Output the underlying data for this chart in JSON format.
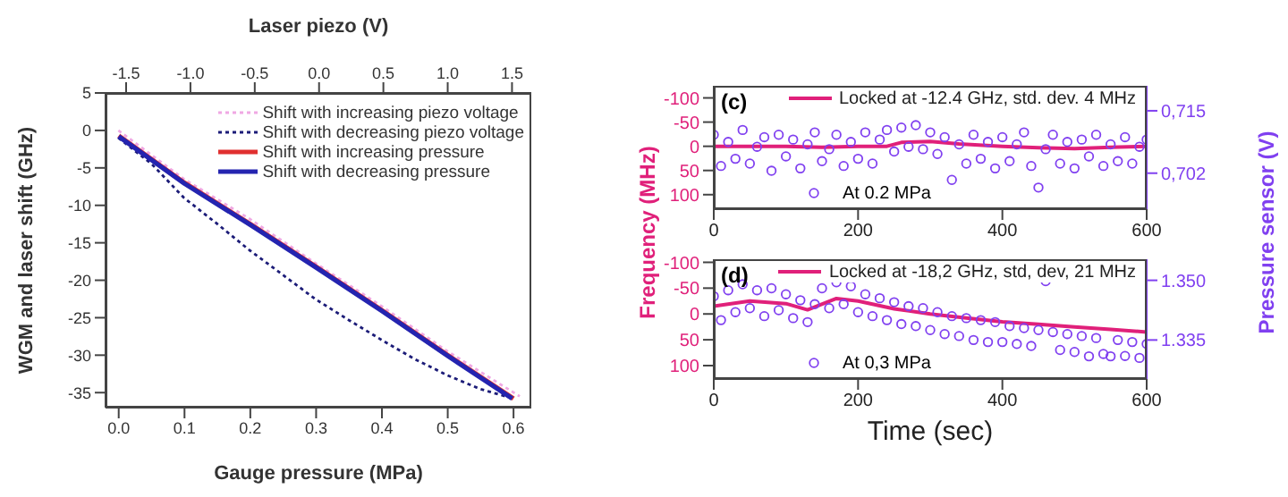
{
  "chart_data": [
    {
      "type": "line",
      "xlabel": "Gauge pressure (MPa)",
      "x2label": "Laser piezo (V)",
      "ylabel": "WGM and laser shift (GHz)",
      "xlim": [
        -0.02,
        0.627
      ],
      "xticks": [
        {
          "value": 0,
          "label": "0.0"
        },
        {
          "value": 0.1,
          "label": "0.1"
        },
        {
          "value": 0.2,
          "label": "0.2"
        },
        {
          "value": 0.3,
          "label": "0.3"
        },
        {
          "value": 0.4,
          "label": "0.4"
        },
        {
          "value": 0.5,
          "label": "0.5"
        },
        {
          "value": 0.6,
          "label": "0.6"
        }
      ],
      "x2lim": [
        -1.66,
        1.65
      ],
      "x2ticks": [
        {
          "value": -1.5,
          "label": "-1.5"
        },
        {
          "value": -1,
          "label": "-1.0"
        },
        {
          "value": -0.5,
          "label": "-0.5"
        },
        {
          "value": 0,
          "label": "0.0"
        },
        {
          "value": 0.5,
          "label": "0.5"
        },
        {
          "value": 1,
          "label": "1.0"
        },
        {
          "value": 1.5,
          "label": "1.5"
        }
      ],
      "ylim": [
        -37,
        5
      ],
      "yticks": [
        5,
        0,
        -5,
        -10,
        -15,
        -20,
        -25,
        -30,
        -35
      ],
      "grid": false,
      "legend": "top right",
      "series": [
        {
          "name": "Shift with increasing piezo voltage",
          "axis": "x2",
          "line_style": "dotted",
          "color": "#f0a8e4",
          "x": [
            -1.56,
            -1.05,
            -0.54,
            -0.03,
            0.49,
            1.0,
            1.56
          ],
          "values": [
            0,
            -6.5,
            -11.8,
            -17.7,
            -23.5,
            -29.5,
            -35.5
          ]
        },
        {
          "name": "Shift with decreasing piezo voltage",
          "axis": "x2",
          "line_style": "dotted",
          "color": "#1c1c78",
          "x": [
            -1.56,
            -1.3,
            -1.05,
            -0.79,
            -0.54,
            -0.28,
            -0.03,
            0.23,
            0.49,
            0.74,
            1.0,
            1.25,
            1.51
          ],
          "values": [
            -1,
            -4.5,
            -9,
            -12.5,
            -16,
            -19.3,
            -22.5,
            -25.3,
            -28,
            -30.5,
            -32.7,
            -34.5,
            -35.8
          ]
        },
        {
          "name": "Shift with increasing pressure",
          "line_style": "solid",
          "color": "#e03030",
          "x": [
            0,
            0.1,
            0.2,
            0.3,
            0.4,
            0.5,
            0.6
          ],
          "values": [
            -0.7,
            -7,
            -12.5,
            -18.2,
            -24,
            -30,
            -35.8
          ]
        },
        {
          "name": "Shift with decreasing pressure",
          "line_style": "solid",
          "color": "#2424b0",
          "x": [
            0,
            0.1,
            0.2,
            0.3,
            0.4,
            0.5,
            0.598
          ],
          "values": [
            -0.8,
            -7.1,
            -12.6,
            -18.3,
            -24.1,
            -30.1,
            -35.8
          ]
        }
      ]
    },
    {
      "type": "line",
      "ylabel": "Frequency (MHz)",
      "y2label": "Pressure sensor (V)",
      "annotations": [
        "(c)"
      ],
      "xlim": [
        0,
        600
      ],
      "xticks": [
        0,
        200,
        400,
        600
      ],
      "ylim": [
        130,
        -125
      ],
      "yticks": [
        -100,
        -50,
        0,
        50,
        100
      ],
      "y2lim": [
        0.6945,
        0.7202
      ],
      "y2ticks": [
        {
          "value": 0.715,
          "label": "0,715"
        },
        {
          "value": 0.702,
          "label": "0,702"
        }
      ],
      "legend": "top right",
      "series": [
        {
          "name": "Locked at -12.4 GHz, std. dev. 4 MHz",
          "color": "#e0207a",
          "x": [
            0,
            50,
            100,
            150,
            200,
            240,
            260,
            300,
            340,
            400,
            450,
            500,
            550,
            600
          ],
          "values": [
            0,
            0,
            0,
            2,
            0,
            0,
            -8,
            -10,
            -5,
            0,
            3,
            5,
            2,
            0
          ]
        },
        {
          "name": "At 0.2 MPa",
          "type": "scatter",
          "axis": "y2",
          "marker": "circle",
          "color": "#8040f0",
          "x": [
            0,
            10,
            20,
            30,
            40,
            50,
            60,
            70,
            80,
            90,
            100,
            110,
            120,
            130,
            140,
            150,
            160,
            170,
            180,
            190,
            200,
            210,
            220,
            230,
            240,
            250,
            260,
            270,
            280,
            290,
            300,
            310,
            320,
            330,
            340,
            350,
            360,
            370,
            380,
            390,
            400,
            410,
            420,
            430,
            440,
            450,
            460,
            470,
            480,
            490,
            500,
            510,
            520,
            530,
            540,
            550,
            560,
            570,
            580,
            590,
            600
          ],
          "values": [
            0.71,
            0.7035,
            0.7085,
            0.705,
            0.711,
            0.704,
            0.7075,
            0.7095,
            0.7025,
            0.71,
            0.7055,
            0.709,
            0.703,
            0.708,
            0.7105,
            0.7045,
            0.707,
            0.71,
            0.7035,
            0.7085,
            0.705,
            0.7105,
            0.704,
            0.709,
            0.711,
            0.7065,
            0.7115,
            0.7075,
            0.712,
            0.707,
            0.7105,
            0.706,
            0.7095,
            0.7006,
            0.708,
            0.704,
            0.71,
            0.705,
            0.7085,
            0.703,
            0.7095,
            0.7045,
            0.708,
            0.7105,
            0.7035,
            0.699,
            0.707,
            0.71,
            0.704,
            0.7085,
            0.703,
            0.709,
            0.7055,
            0.71,
            0.7035,
            0.708,
            0.7045,
            0.7095,
            0.704,
            0.7075,
            0.709
          ]
        }
      ]
    },
    {
      "type": "line",
      "xlabel": "Time (sec)",
      "annotations": [
        "(d)"
      ],
      "xlim": [
        0,
        600
      ],
      "xticks": [
        0,
        200,
        400,
        600
      ],
      "ylim": [
        126,
        -106
      ],
      "yticks": [
        -100,
        -50,
        0,
        50,
        100
      ],
      "y2lim": [
        1.3252,
        1.3553
      ],
      "y2ticks": [
        {
          "value": 1.35,
          "label": "1.350"
        },
        {
          "value": 1.335,
          "label": "1.335"
        }
      ],
      "legend": "top right",
      "series": [
        {
          "name": "Locked at -18,2 GHz, std, dev, 21 MHz",
          "color": "#e0207a",
          "x": [
            0,
            50,
            100,
            130,
            170,
            200,
            250,
            300,
            350,
            400,
            450,
            500,
            550,
            600
          ],
          "values": [
            -15,
            -25,
            -20,
            -8,
            -30,
            -25,
            -10,
            0,
            8,
            15,
            20,
            25,
            30,
            35
          ]
        },
        {
          "name": "At 0,3 MPa",
          "type": "scatter",
          "axis": "y2",
          "marker": "circle",
          "color": "#8040f0",
          "x": [
            0,
            10,
            20,
            30,
            40,
            50,
            60,
            70,
            80,
            90,
            100,
            110,
            120,
            130,
            140,
            150,
            160,
            170,
            180,
            190,
            200,
            210,
            220,
            230,
            240,
            250,
            260,
            270,
            280,
            290,
            300,
            310,
            320,
            330,
            340,
            350,
            360,
            370,
            380,
            390,
            400,
            410,
            420,
            430,
            440,
            450,
            460,
            470,
            480,
            490,
            500,
            510,
            520,
            530,
            540,
            550,
            560,
            570,
            580,
            590,
            600
          ],
          "values": [
            1.346,
            1.34,
            1.3475,
            1.342,
            1.349,
            1.343,
            1.3475,
            1.341,
            1.348,
            1.3425,
            1.3465,
            1.3405,
            1.345,
            1.3395,
            1.344,
            1.348,
            1.343,
            1.3495,
            1.344,
            1.3485,
            1.342,
            1.3465,
            1.341,
            1.3455,
            1.34,
            1.3445,
            1.339,
            1.3435,
            1.3385,
            1.343,
            1.3375,
            1.342,
            1.3365,
            1.341,
            1.336,
            1.3405,
            1.335,
            1.34,
            1.3345,
            1.3395,
            1.3345,
            1.3385,
            1.334,
            1.338,
            1.3335,
            1.3375,
            1.3498,
            1.337,
            1.3325,
            1.3365,
            1.332,
            1.336,
            1.3309,
            1.3355,
            1.3315,
            1.3309,
            1.335,
            1.331,
            1.3345,
            1.3305,
            1.334
          ]
        }
      ]
    }
  ]
}
